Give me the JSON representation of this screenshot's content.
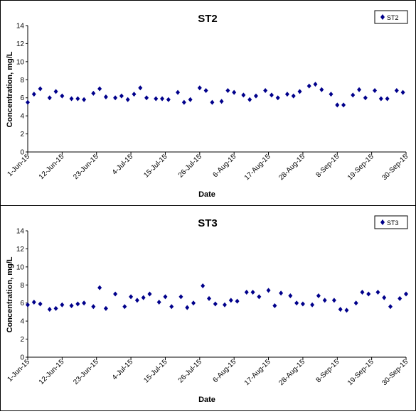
{
  "chart_data": [
    {
      "type": "scatter",
      "title": "ST2",
      "xlabel": "Date",
      "ylabel": "Concentration, mg/L",
      "ylim": [
        0,
        14
      ],
      "yticks": [
        0,
        2,
        4,
        6,
        8,
        10,
        12,
        14
      ],
      "xlim": [
        "2015-06-01",
        "2015-09-30"
      ],
      "xtick_labels": [
        "1-Jun-15",
        "12-Jun-15",
        "23-Jun-15",
        "4-Jul-15",
        "15-Jul-15",
        "26-Jul-15",
        "6-Aug-15",
        "17-Aug-15",
        "28-Aug-15",
        "8-Sep-15",
        "19-Sep-15",
        "30-Sep-15"
      ],
      "xtick_dates": [
        "2015-06-01",
        "2015-06-12",
        "2015-06-23",
        "2015-07-04",
        "2015-07-15",
        "2015-07-26",
        "2015-08-06",
        "2015-08-17",
        "2015-08-28",
        "2015-09-08",
        "2015-09-19",
        "2015-09-30"
      ],
      "legend": "top-right",
      "grid": false,
      "marker_color": "#00008b",
      "series": [
        {
          "name": "ST2",
          "x": [
            "2015-06-01",
            "2015-06-03",
            "2015-06-05",
            "2015-06-08",
            "2015-06-10",
            "2015-06-12",
            "2015-06-15",
            "2015-06-17",
            "2015-06-19",
            "2015-06-22",
            "2015-06-24",
            "2015-06-26",
            "2015-06-29",
            "2015-07-01",
            "2015-07-03",
            "2015-07-05",
            "2015-07-07",
            "2015-07-09",
            "2015-07-12",
            "2015-07-14",
            "2015-07-16",
            "2015-07-19",
            "2015-07-21",
            "2015-07-23",
            "2015-07-26",
            "2015-07-28",
            "2015-07-30",
            "2015-08-02",
            "2015-08-04",
            "2015-08-06",
            "2015-08-09",
            "2015-08-11",
            "2015-08-13",
            "2015-08-16",
            "2015-08-18",
            "2015-08-20",
            "2015-08-23",
            "2015-08-25",
            "2015-08-27",
            "2015-08-30",
            "2015-09-01",
            "2015-09-03",
            "2015-09-06",
            "2015-09-08",
            "2015-09-10",
            "2015-09-13",
            "2015-09-15",
            "2015-09-17",
            "2015-09-20",
            "2015-09-22",
            "2015-09-24",
            "2015-09-27",
            "2015-09-29"
          ],
          "y": [
            5.5,
            6.4,
            7.0,
            6.0,
            6.7,
            6.2,
            5.9,
            5.9,
            5.8,
            6.5,
            7.0,
            6.1,
            6.0,
            6.2,
            5.8,
            6.4,
            7.1,
            6.0,
            5.9,
            5.9,
            5.8,
            6.6,
            5.5,
            5.8,
            7.1,
            6.8,
            5.5,
            5.6,
            6.8,
            6.6,
            6.3,
            5.8,
            6.2,
            6.8,
            6.3,
            6.0,
            6.4,
            6.2,
            6.7,
            7.3,
            7.5,
            6.9,
            6.4,
            5.2,
            5.2,
            6.3,
            6.9,
            6.0,
            6.8,
            5.9,
            5.9,
            6.8,
            6.6
          ]
        }
      ]
    },
    {
      "type": "scatter",
      "title": "ST3",
      "xlabel": "Date",
      "ylabel": "Concentration, mg/L",
      "ylim": [
        0,
        14
      ],
      "yticks": [
        0,
        2,
        4,
        6,
        8,
        10,
        12,
        14
      ],
      "xlim": [
        "2015-06-01",
        "2015-09-30"
      ],
      "xtick_labels": [
        "1-Jun-15",
        "12-Jun-15",
        "23-Jun-15",
        "4-Jul-15",
        "15-Jul-15",
        "26-Jul-15",
        "6-Aug-15",
        "17-Aug-15",
        "28-Aug-15",
        "8-Sep-15",
        "19-Sep-15",
        "30-Sep-15"
      ],
      "xtick_dates": [
        "2015-06-01",
        "2015-06-12",
        "2015-06-23",
        "2015-07-04",
        "2015-07-15",
        "2015-07-26",
        "2015-08-06",
        "2015-08-17",
        "2015-08-28",
        "2015-09-08",
        "2015-09-19",
        "2015-09-30"
      ],
      "legend": "top-right",
      "grid": false,
      "marker_color": "#00008b",
      "series": [
        {
          "name": "ST3",
          "x": [
            "2015-06-01",
            "2015-06-03",
            "2015-06-05",
            "2015-06-08",
            "2015-06-10",
            "2015-06-12",
            "2015-06-15",
            "2015-06-17",
            "2015-06-19",
            "2015-06-22",
            "2015-06-24",
            "2015-06-26",
            "2015-06-29",
            "2015-07-02",
            "2015-07-04",
            "2015-07-06",
            "2015-07-08",
            "2015-07-10",
            "2015-07-13",
            "2015-07-15",
            "2015-07-17",
            "2015-07-20",
            "2015-07-22",
            "2015-07-24",
            "2015-07-27",
            "2015-07-29",
            "2015-07-31",
            "2015-08-03",
            "2015-08-05",
            "2015-08-07",
            "2015-08-10",
            "2015-08-12",
            "2015-08-14",
            "2015-08-17",
            "2015-08-19",
            "2015-08-21",
            "2015-08-24",
            "2015-08-26",
            "2015-08-28",
            "2015-08-31",
            "2015-09-02",
            "2015-09-04",
            "2015-09-07",
            "2015-09-09",
            "2015-09-11",
            "2015-09-14",
            "2015-09-16",
            "2015-09-18",
            "2015-09-21",
            "2015-09-23",
            "2015-09-25",
            "2015-09-28",
            "2015-09-30"
          ],
          "y": [
            5.8,
            6.1,
            5.9,
            5.3,
            5.4,
            5.8,
            5.7,
            5.9,
            6.0,
            5.6,
            7.7,
            5.4,
            7.0,
            5.6,
            6.7,
            6.3,
            6.6,
            7.0,
            6.1,
            6.7,
            5.6,
            6.7,
            5.5,
            6.0,
            7.9,
            6.5,
            5.9,
            5.8,
            6.3,
            6.2,
            7.2,
            7.2,
            6.7,
            7.4,
            5.7,
            7.1,
            6.8,
            6.0,
            5.9,
            5.8,
            6.8,
            6.3,
            6.3,
            5.3,
            5.2,
            6.0,
            7.2,
            7.0,
            7.2,
            6.6,
            5.6,
            6.5,
            7.0
          ]
        }
      ]
    }
  ]
}
